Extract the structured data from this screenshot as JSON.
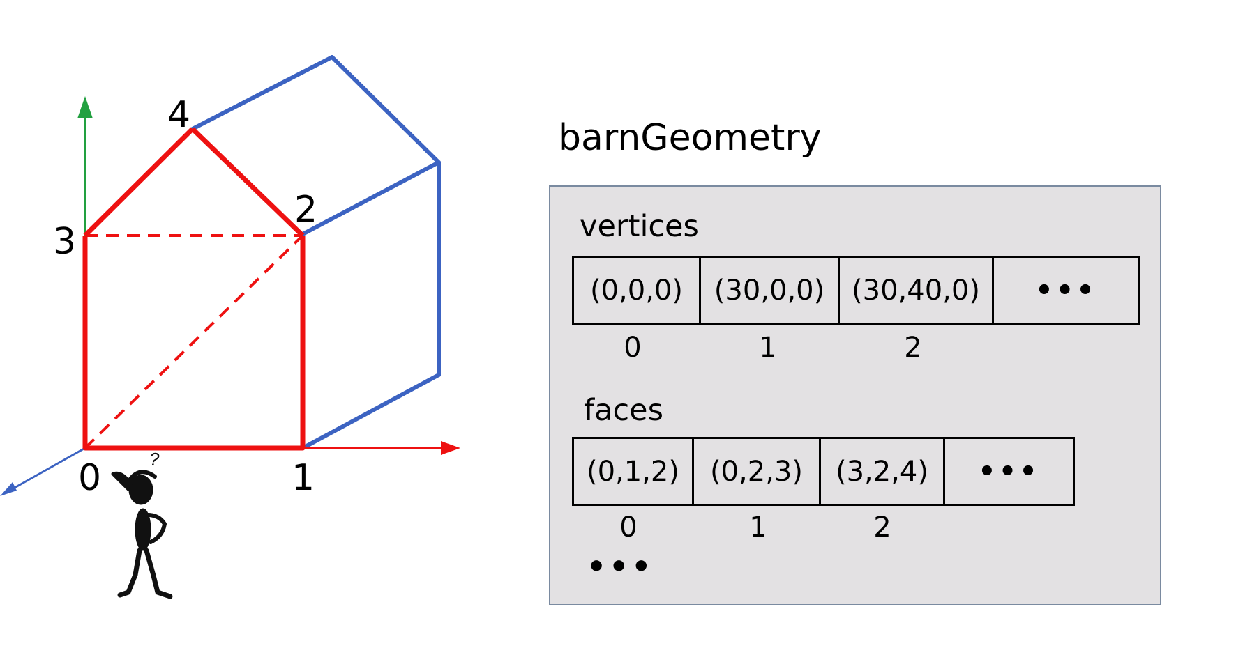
{
  "diagram": {
    "vertex_labels": [
      "0",
      "1",
      "2",
      "3",
      "4"
    ],
    "colors": {
      "front_face": "#ee1111",
      "back_edges": "#3c63c2",
      "y_axis": "#22a040",
      "x_axis": "#ee1111",
      "z_axis": "#3c63c2",
      "panel_bg": "#e3e1e3"
    },
    "figure_icon": "confused-person-icon",
    "figure_glyph": "?"
  },
  "data_panel": {
    "title": "barnGeometry",
    "vertices": {
      "label": "vertices",
      "cells": [
        "(0,0,0)",
        "(30,0,0)",
        "(30,40,0)",
        "•••"
      ],
      "indices": [
        "0",
        "1",
        "2"
      ]
    },
    "faces": {
      "label": "faces",
      "cells": [
        "(0,1,2)",
        "(0,2,3)",
        "(3,2,4)",
        "•••"
      ],
      "indices": [
        "0",
        "1",
        "2"
      ]
    },
    "more": "•••"
  }
}
